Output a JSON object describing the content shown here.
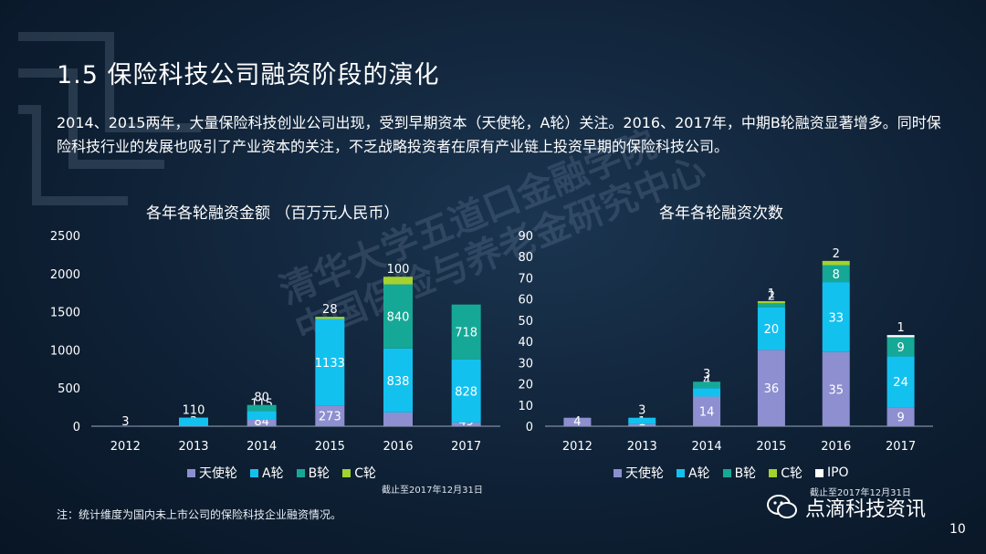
{
  "title": "1.5  保险科技公司融资阶段的演化",
  "description": "2014、2015两年，大量保险科技创业公司出现，受到早期资本（天使轮，A轮）关注。2016、2017年，中期B轮融资显著增多。同时保险科技行业的发展也吸引了产业资本的关注，不乏战略投资者在原有产业链上投资早期的保险科技公司。",
  "watermark": [
    "清华大学五道口金融学院",
    "中国保险与养老金研究中心"
  ],
  "colors": {
    "angel": "#8d8fd0",
    "a_round": "#13c1ef",
    "b_round": "#16a896",
    "c_round": "#a4d22f",
    "ipo": "#ffffff"
  },
  "chart_data": [
    {
      "type": "bar",
      "stacked": true,
      "title": "各年各轮融资金额 （百万元人民币）",
      "categories": [
        "2012",
        "2013",
        "2014",
        "2015",
        "2016",
        "2017"
      ],
      "ylim": [
        0,
        2500
      ],
      "yticks": [
        "0",
        "500",
        "1000",
        "1500",
        "2000",
        "2500"
      ],
      "series": [
        {
          "name": "天使轮",
          "values": [
            3,
            3,
            84,
            273,
            181,
            49
          ]
        },
        {
          "name": "A轮",
          "values": [
            0,
            110,
            115,
            1133,
            838,
            828
          ]
        },
        {
          "name": "B轮",
          "values": [
            0,
            0,
            80,
            0,
            840,
            718
          ]
        },
        {
          "name": "C轮",
          "values": [
            0,
            0,
            0,
            28,
            100,
            0
          ]
        }
      ],
      "labels": [
        [
          "3",
          "3",
          "84",
          "273",
          "181",
          "49"
        ],
        [
          "",
          "110",
          "115",
          "1133",
          "838",
          "828"
        ],
        [
          "",
          "",
          "80",
          "",
          "840",
          "718"
        ],
        [
          "",
          "",
          "",
          "28",
          "100",
          ""
        ]
      ],
      "legend": [
        "天使轮",
        "A轮",
        "B轮",
        "C轮"
      ],
      "cutoff_note": "截止至2017年12月31日"
    },
    {
      "type": "bar",
      "stacked": true,
      "title": "各年各轮融资次数",
      "categories": [
        "2012",
        "2013",
        "2014",
        "2015",
        "2016",
        "2017"
      ],
      "ylim": [
        0,
        90
      ],
      "yticks": [
        "0",
        "10",
        "20",
        "30",
        "40",
        "50",
        "60",
        "70",
        "80",
        "90"
      ],
      "series": [
        {
          "name": "天使轮",
          "values": [
            4,
            1,
            14,
            36,
            35,
            9
          ]
        },
        {
          "name": "A轮",
          "values": [
            0,
            3,
            4,
            20,
            33,
            24
          ]
        },
        {
          "name": "B轮",
          "values": [
            0,
            0,
            3,
            2,
            8,
            9
          ]
        },
        {
          "name": "C轮",
          "values": [
            0,
            0,
            0,
            1,
            2,
            0
          ]
        },
        {
          "name": "IPO",
          "values": [
            0,
            0,
            0,
            0,
            0,
            1
          ]
        }
      ],
      "labels": [
        [
          "4",
          "1",
          "14",
          "36",
          "35",
          "9"
        ],
        [
          "",
          "3",
          "4",
          "20",
          "33",
          "24"
        ],
        [
          "",
          "",
          "3",
          "2",
          "8",
          "9"
        ],
        [
          "",
          "",
          "",
          "1",
          "2",
          ""
        ],
        [
          "",
          "",
          "",
          "",
          "",
          "1"
        ]
      ],
      "legend": [
        "天使轮",
        "A轮",
        "B轮",
        "C轮",
        "IPO"
      ],
      "cutoff_note": "截止至2017年12月31日"
    }
  ],
  "note": "注：统计维度为国内未上市公司的保险科技企业融资情况。",
  "brand": "点滴科技资讯",
  "page_number": "10"
}
